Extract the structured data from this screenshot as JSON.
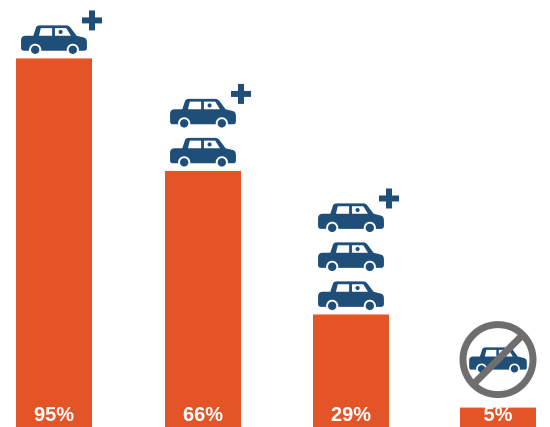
{
  "chart_data": {
    "type": "bar",
    "categories": [
      "",
      "",
      "",
      ""
    ],
    "values": [
      95,
      66,
      29,
      5
    ],
    "value_labels": [
      "95%",
      "66%",
      "29%",
      "5%"
    ],
    "car_icon_counts": [
      1,
      2,
      3,
      0
    ],
    "car_icon_plus": [
      true,
      true,
      true,
      false
    ],
    "no_car_icon": [
      false,
      false,
      false,
      true
    ],
    "title": "",
    "xlabel": "",
    "ylabel": "",
    "ylim": [
      0,
      100
    ],
    "grid": false,
    "legend": "none"
  },
  "colors": {
    "bar": "#e35426",
    "icon": "#1f4e79",
    "label": "#ffffff",
    "no_sign": "#6e6e6e"
  },
  "icons": {
    "car": "car-icon",
    "plus": "plus-icon",
    "no_car": "no-car-icon"
  }
}
